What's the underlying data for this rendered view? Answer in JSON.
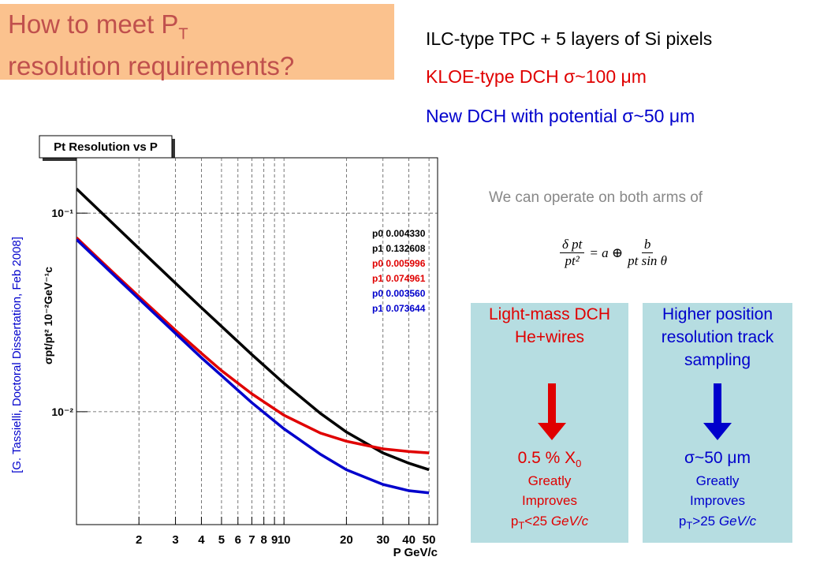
{
  "title": [
    "How to meet P",
    "T",
    "resolution requirements?"
  ],
  "bullets": [
    {
      "text": "ILC-type TPC + 5 layers of Si pixels",
      "color": "#000000"
    },
    {
      "text": "KLOE-type DCH σ~100 μm",
      "color": "#e00000"
    },
    {
      "text": "New DCH with potential σ~50 μm",
      "color": "#0000cc"
    }
  ],
  "note": "We can operate on both arms of",
  "formula": {
    "lhs_num": "δ pt",
    "lhs_den": "pt²",
    "middle": "= a ⊕",
    "rhs_num": "b",
    "rhs_den": "pt sin θ"
  },
  "citation": "[G. Tassielli, Doctoral Dissertation, Feb 2008]",
  "boxes": [
    {
      "heading": [
        "Light-mass DCH",
        "He+wires"
      ],
      "color": "#e00000",
      "result": [
        "0.5 % X",
        "0"
      ],
      "lines": [
        "Greatly",
        "Improves"
      ],
      "cond": [
        "p",
        "T",
        "<25 ",
        "GeV/c"
      ]
    },
    {
      "heading": [
        "Higher position",
        "resolution track",
        "sampling"
      ],
      "color": "#0000cc",
      "result": [
        "σ~50 μm"
      ],
      "lines": [
        "Greatly",
        "Improves"
      ],
      "cond": [
        "p",
        "T",
        ">25 ",
        "GeV/c"
      ]
    }
  ],
  "chart_data": {
    "type": "line",
    "title": "Pt Resolution vs P",
    "y_label": "σpt/pt² 10⁻²GeV⁻¹c",
    "x_label": "P  GeV/c",
    "log_x": true,
    "log_y": true,
    "grid": true,
    "xlim": [
      1,
      55
    ],
    "ylim": [
      0.0027,
      0.19
    ],
    "xticks": [
      2,
      3,
      4,
      5,
      6,
      7,
      8,
      9,
      10,
      20,
      30,
      40,
      50
    ],
    "yticks": [
      {
        "value": 0.01,
        "label": "10⁻²"
      },
      {
        "value": 0.1,
        "label": "10⁻¹"
      }
    ],
    "x": [
      1,
      1.5,
      2,
      3,
      4,
      5,
      7,
      10,
      15,
      20,
      30,
      40,
      50
    ],
    "series": [
      {
        "color": "#000000",
        "values": [
          0.1327,
          0.0885,
          0.0664,
          0.0444,
          0.0334,
          0.0269,
          0.0194,
          0.0139,
          0.0098,
          0.0079,
          0.0062,
          0.0055,
          0.0051
        ]
      },
      {
        "color": "#e00000",
        "values": [
          0.0752,
          0.0503,
          0.038,
          0.0257,
          0.0197,
          0.0161,
          0.0123,
          0.0096,
          0.0078,
          0.0071,
          0.0065,
          0.0063,
          0.0062
        ]
      },
      {
        "color": "#0000cc",
        "values": [
          0.0737,
          0.0492,
          0.037,
          0.0248,
          0.0187,
          0.0152,
          0.0111,
          0.0082,
          0.0061,
          0.0051,
          0.0043,
          0.004,
          0.0039
        ]
      }
    ],
    "annotations": [
      {
        "text": "p0 0.004330",
        "color": "#000000"
      },
      {
        "text": "p1 0.132608",
        "color": "#000000"
      },
      {
        "text": "p0 0.005996",
        "color": "#e00000"
      },
      {
        "text": "p1 0.074961",
        "color": "#e00000"
      },
      {
        "text": "p0 0.003560",
        "color": "#0000cc"
      },
      {
        "text": "p1 0.073644",
        "color": "#0000cc"
      }
    ]
  }
}
